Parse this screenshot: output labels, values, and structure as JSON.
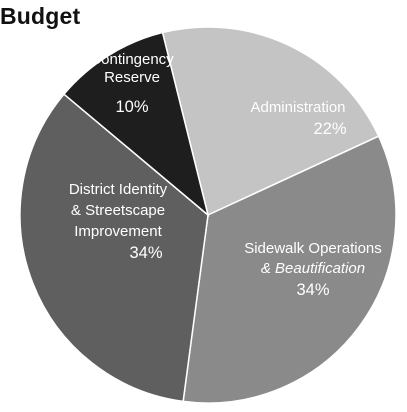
{
  "chart_data": {
    "type": "pie",
    "title": "Budget",
    "slices": [
      {
        "label_lines": [
          "Administration"
        ],
        "label_style": "normal",
        "value": 22,
        "display": "22%",
        "color": "#c4c4c4",
        "text_color": "#ffffff"
      },
      {
        "label_lines": [
          "Sidewalk Operations",
          "& Beautification"
        ],
        "label_style": "italic-second",
        "value": 34,
        "display": "34%",
        "color": "#8a8a8a",
        "text_color": "#ffffff"
      },
      {
        "label_lines": [
          "District Identity",
          "& Streetscape",
          "Improvement"
        ],
        "label_style": "normal",
        "value": 34,
        "display": "34%",
        "color": "#5f5f5f",
        "text_color": "#ffffff"
      },
      {
        "label_lines": [
          "Contingency",
          "Reserve"
        ],
        "label_style": "normal",
        "value": 10,
        "display": "10%",
        "color": "#1e1e1e",
        "text_color": "#ffffff"
      }
    ]
  }
}
